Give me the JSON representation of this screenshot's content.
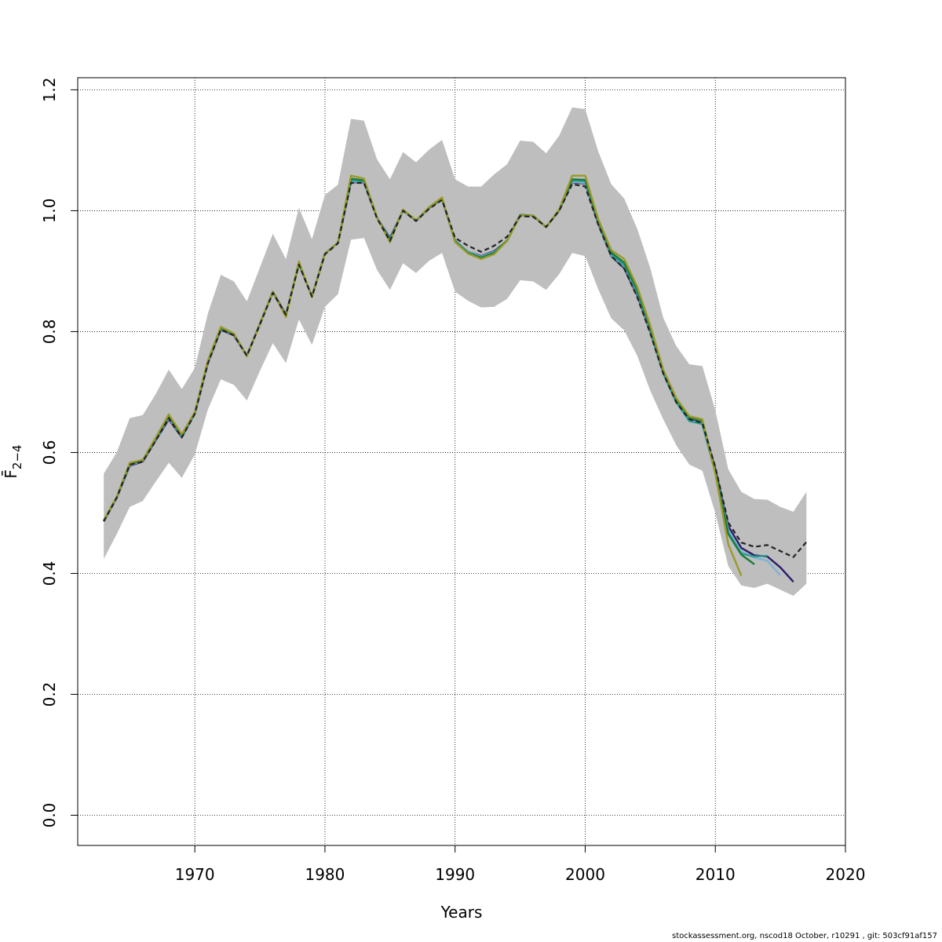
{
  "chart_data": {
    "type": "line",
    "title": "",
    "xlabel": "Years",
    "ylabel": "F̄",
    "ylabel_subscript": "2−4",
    "xlim": [
      1961,
      2020
    ],
    "ylim": [
      -0.05,
      1.22
    ],
    "x_ticks": [
      1970,
      1980,
      1990,
      2000,
      2010,
      2020
    ],
    "y_ticks": [
      0.0,
      0.2,
      0.4,
      0.6,
      0.8,
      1.0,
      1.2
    ],
    "grid": true,
    "years": [
      1963,
      1964,
      1965,
      1966,
      1967,
      1968,
      1969,
      1970,
      1971,
      1972,
      1973,
      1974,
      1975,
      1976,
      1977,
      1978,
      1979,
      1980,
      1981,
      1982,
      1983,
      1984,
      1985,
      1986,
      1987,
      1988,
      1989,
      1990,
      1991,
      1992,
      1993,
      1994,
      1995,
      1996,
      1997,
      1998,
      1999,
      2000,
      2001,
      2002,
      2003,
      2004,
      2005,
      2006,
      2007,
      2008,
      2009,
      2010,
      2011,
      2012,
      2013,
      2014,
      2015,
      2016,
      2017
    ],
    "band_upper": [
      0.565,
      0.6,
      0.657,
      0.662,
      0.697,
      0.737,
      0.705,
      0.74,
      0.83,
      0.894,
      0.883,
      0.85,
      0.906,
      0.962,
      0.92,
      1.005,
      0.953,
      1.026,
      1.043,
      1.152,
      1.149,
      1.085,
      1.052,
      1.097,
      1.08,
      1.101,
      1.117,
      1.052,
      1.04,
      1.04,
      1.06,
      1.077,
      1.116,
      1.114,
      1.095,
      1.124,
      1.171,
      1.168,
      1.098,
      1.044,
      1.02,
      0.97,
      0.905,
      0.823,
      0.776,
      0.746,
      0.743,
      0.67,
      0.572,
      0.535,
      0.523,
      0.522,
      0.51,
      0.502,
      0.535
    ],
    "band_lower": [
      0.424,
      0.465,
      0.51,
      0.52,
      0.552,
      0.583,
      0.558,
      0.597,
      0.671,
      0.721,
      0.712,
      0.686,
      0.735,
      0.781,
      0.748,
      0.82,
      0.778,
      0.841,
      0.862,
      0.952,
      0.955,
      0.902,
      0.869,
      0.913,
      0.897,
      0.917,
      0.93,
      0.866,
      0.851,
      0.84,
      0.841,
      0.854,
      0.885,
      0.883,
      0.869,
      0.895,
      0.93,
      0.925,
      0.87,
      0.822,
      0.802,
      0.76,
      0.702,
      0.655,
      0.612,
      0.58,
      0.57,
      0.5,
      0.412,
      0.38,
      0.376,
      0.383,
      0.373,
      0.363,
      0.383
    ],
    "series": [
      {
        "color": "#222222",
        "dashed": true,
        "start": 1963,
        "values": [
          0.486,
          0.525,
          0.58,
          0.585,
          0.62,
          0.657,
          0.625,
          0.664,
          0.747,
          0.803,
          0.794,
          0.76,
          0.812,
          0.864,
          0.828,
          0.911,
          0.858,
          0.928,
          0.946,
          1.046,
          1.046,
          0.987,
          0.95,
          1.0,
          0.983,
          1.003,
          1.018,
          0.955,
          0.942,
          0.932,
          0.942,
          0.957,
          0.991,
          0.99,
          0.973,
          1.0,
          1.044,
          1.04,
          0.977,
          0.925,
          0.904,
          0.857,
          0.797,
          0.731,
          0.683,
          0.655,
          0.649,
          0.576,
          0.484,
          0.451,
          0.444,
          0.447,
          0.437,
          0.427,
          0.452
        ]
      },
      {
        "color": "#2d1c6b",
        "dashed": false,
        "start": 1963,
        "values": [
          0.486,
          0.525,
          0.578,
          0.585,
          0.62,
          0.655,
          0.625,
          0.664,
          0.748,
          0.803,
          0.794,
          0.76,
          0.812,
          0.866,
          0.828,
          0.912,
          0.858,
          0.929,
          0.947,
          1.047,
          1.047,
          0.988,
          0.955,
          1.0,
          0.983,
          1.004,
          1.019,
          0.951,
          0.932,
          0.925,
          0.933,
          0.95,
          0.992,
          0.991,
          0.973,
          1.0,
          1.047,
          1.045,
          0.978,
          0.925,
          0.905,
          0.86,
          0.799,
          0.731,
          0.683,
          0.655,
          0.649,
          0.573,
          0.478,
          0.442,
          0.43,
          0.428,
          0.41,
          0.386
        ]
      },
      {
        "color": "#7fb3d5",
        "dashed": false,
        "start": 1963,
        "values": [
          0.486,
          0.525,
          0.579,
          0.586,
          0.621,
          0.657,
          0.626,
          0.664,
          0.749,
          0.804,
          0.795,
          0.76,
          0.813,
          0.865,
          0.827,
          0.912,
          0.858,
          0.929,
          0.947,
          1.048,
          1.048,
          0.988,
          0.953,
          1.0,
          0.983,
          1.004,
          1.019,
          0.951,
          0.932,
          0.924,
          0.932,
          0.95,
          0.992,
          0.991,
          0.973,
          1.0,
          1.048,
          1.046,
          0.979,
          0.926,
          0.908,
          0.863,
          0.8,
          0.731,
          0.683,
          0.653,
          0.648,
          0.569,
          0.472,
          0.436,
          0.426,
          0.421,
          0.397
        ]
      },
      {
        "color": "#2a9d8f",
        "dashed": false,
        "start": 1963,
        "values": [
          0.487,
          0.526,
          0.58,
          0.587,
          0.622,
          0.659,
          0.627,
          0.665,
          0.75,
          0.805,
          0.795,
          0.76,
          0.813,
          0.865,
          0.827,
          0.913,
          0.858,
          0.929,
          0.947,
          1.05,
          1.049,
          0.989,
          0.952,
          1.001,
          0.984,
          1.005,
          1.02,
          0.95,
          0.931,
          0.923,
          0.931,
          0.951,
          0.993,
          0.992,
          0.973,
          1.001,
          1.05,
          1.049,
          0.98,
          0.928,
          0.91,
          0.865,
          0.802,
          0.731,
          0.683,
          0.652,
          0.647,
          0.566,
          0.467,
          0.433,
          0.428,
          0.429
        ]
      },
      {
        "color": "#1e7b3c",
        "dashed": false,
        "start": 1963,
        "values": [
          0.487,
          0.526,
          0.581,
          0.587,
          0.623,
          0.66,
          0.628,
          0.666,
          0.751,
          0.806,
          0.796,
          0.76,
          0.813,
          0.866,
          0.826,
          0.913,
          0.858,
          0.929,
          0.947,
          1.053,
          1.05,
          0.989,
          0.951,
          1.001,
          0.984,
          1.005,
          1.02,
          0.949,
          0.93,
          0.922,
          0.93,
          0.951,
          0.993,
          0.992,
          0.973,
          1.001,
          1.052,
          1.051,
          0.982,
          0.931,
          0.914,
          0.869,
          0.806,
          0.735,
          0.688,
          0.658,
          0.653,
          0.57,
          0.465,
          0.431,
          0.415
        ]
      },
      {
        "color": "#9a9a2a",
        "dashed": false,
        "start": 1963,
        "values": [
          0.488,
          0.527,
          0.583,
          0.588,
          0.625,
          0.663,
          0.63,
          0.667,
          0.752,
          0.808,
          0.797,
          0.759,
          0.812,
          0.866,
          0.824,
          0.916,
          0.857,
          0.929,
          0.947,
          1.058,
          1.053,
          0.989,
          0.948,
          1.002,
          0.984,
          1.006,
          1.022,
          0.948,
          0.929,
          0.92,
          0.928,
          0.95,
          0.992,
          0.992,
          0.973,
          1.002,
          1.058,
          1.058,
          0.986,
          0.935,
          0.92,
          0.874,
          0.81,
          0.737,
          0.69,
          0.66,
          0.655,
          0.565,
          0.448,
          0.396
        ]
      }
    ]
  },
  "footer": "stockassessment.org, nscod18  October, r10291 , git: 503cf91af157"
}
